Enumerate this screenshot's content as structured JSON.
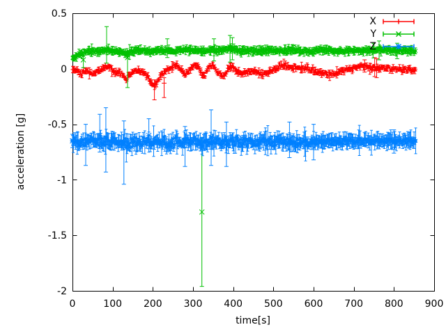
{
  "window": {
    "title": "acceleration plot",
    "background": "#ffffff"
  },
  "chart_data": {
    "type": "scatter",
    "subtype": "errorbars",
    "title": "",
    "xlabel": "time[s]",
    "ylabel": "acceleration [g]",
    "xlim": [
      0,
      900
    ],
    "ylim": [
      -2,
      0.5
    ],
    "grid": false,
    "legend_position": "top-right-inside",
    "axis_color": "#000000",
    "text_color": "#000000",
    "x_ticks": [
      0,
      100,
      200,
      300,
      400,
      500,
      600,
      700,
      800,
      900
    ],
    "x_tick_labels": [
      "0",
      "100",
      "200",
      "300",
      "400",
      "500",
      "600",
      "700",
      "800",
      "900"
    ],
    "y_ticks": [
      0.5,
      0,
      -0.5,
      -1,
      -1.5,
      -2
    ],
    "y_tick_labels": [
      "0.5",
      "0",
      "-0.5",
      "-1",
      "-1.5",
      "-2"
    ],
    "t_start": 0,
    "t_end": 855,
    "sample_step": 2,
    "series": [
      {
        "name": "X",
        "color": "#ff0000",
        "marker": "plus",
        "seed": 101,
        "band": 0.025,
        "ebar": 0.02,
        "anchors": [
          [
            0,
            0.0
          ],
          [
            12,
            -0.02
          ],
          [
            22,
            -0.04
          ],
          [
            32,
            -0.02
          ],
          [
            45,
            -0.05
          ],
          [
            58,
            -0.03
          ],
          [
            70,
            -0.01
          ],
          [
            82,
            0.02
          ],
          [
            92,
            0.01
          ],
          [
            103,
            -0.02
          ],
          [
            115,
            -0.03
          ],
          [
            125,
            -0.06
          ],
          [
            133,
            -0.1
          ],
          [
            140,
            -0.06
          ],
          [
            150,
            -0.03
          ],
          [
            163,
            -0.02
          ],
          [
            175,
            -0.03
          ],
          [
            188,
            -0.07
          ],
          [
            197,
            -0.13
          ],
          [
            205,
            -0.15
          ],
          [
            213,
            -0.1
          ],
          [
            222,
            -0.05
          ],
          [
            235,
            -0.02
          ],
          [
            248,
            0.02
          ],
          [
            258,
            0.04
          ],
          [
            268,
            0.0
          ],
          [
            280,
            -0.06
          ],
          [
            290,
            -0.02
          ],
          [
            300,
            0.02
          ],
          [
            312,
            0.04
          ],
          [
            322,
            -0.05
          ],
          [
            330,
            -0.07
          ],
          [
            338,
            0.0
          ],
          [
            348,
            0.03
          ],
          [
            358,
            -0.02
          ],
          [
            368,
            -0.05
          ],
          [
            378,
            -0.06
          ],
          [
            388,
            0.01
          ],
          [
            398,
            0.03
          ],
          [
            408,
            -0.02
          ],
          [
            418,
            -0.05
          ],
          [
            428,
            -0.04
          ],
          [
            440,
            -0.02
          ],
          [
            455,
            -0.03
          ],
          [
            470,
            -0.05
          ],
          [
            482,
            -0.04
          ],
          [
            495,
            -0.02
          ],
          [
            508,
            0.01
          ],
          [
            520,
            0.03
          ],
          [
            532,
            0.03
          ],
          [
            545,
            0.02
          ],
          [
            558,
            0.01
          ],
          [
            572,
            0.0
          ],
          [
            585,
            0.0
          ],
          [
            598,
            -0.01
          ],
          [
            612,
            -0.03
          ],
          [
            625,
            -0.05
          ],
          [
            640,
            -0.05
          ],
          [
            652,
            -0.04
          ],
          [
            665,
            -0.03
          ],
          [
            678,
            -0.01
          ],
          [
            692,
            0.0
          ],
          [
            705,
            0.01
          ],
          [
            718,
            0.02
          ],
          [
            730,
            0.02
          ],
          [
            742,
            0.01
          ],
          [
            755,
            0.0
          ],
          [
            768,
            0.01
          ],
          [
            780,
            0.01
          ],
          [
            795,
            0.0
          ],
          [
            810,
            0.0
          ],
          [
            825,
            -0.01
          ],
          [
            840,
            -0.01
          ],
          [
            855,
            -0.01
          ]
        ],
        "features": [
          [
            204,
            -0.15,
            -0.28,
            -0.1
          ],
          [
            228,
            -0.13,
            -0.26,
            -0.08
          ],
          [
            727,
            0.03,
            -0.03,
            0.08
          ],
          [
            752,
            0.02,
            -0.07,
            0.1
          ],
          [
            757,
            -0.01,
            -0.08,
            0.09
          ]
        ]
      },
      {
        "name": "Y",
        "color": "#00c000",
        "marker": "cross",
        "seed": 202,
        "band": 0.018,
        "ebar": 0.028,
        "anchors": [
          [
            0,
            0.1
          ],
          [
            8,
            0.11
          ],
          [
            18,
            0.13
          ],
          [
            30,
            0.15
          ],
          [
            45,
            0.16
          ],
          [
            60,
            0.16
          ],
          [
            75,
            0.17
          ],
          [
            90,
            0.17
          ],
          [
            105,
            0.16
          ],
          [
            120,
            0.15
          ],
          [
            135,
            0.14
          ],
          [
            150,
            0.16
          ],
          [
            165,
            0.17
          ],
          [
            180,
            0.16
          ],
          [
            195,
            0.15
          ],
          [
            210,
            0.16
          ],
          [
            225,
            0.17
          ],
          [
            240,
            0.16
          ],
          [
            255,
            0.16
          ],
          [
            270,
            0.17
          ],
          [
            285,
            0.17
          ],
          [
            300,
            0.17
          ],
          [
            315,
            0.16
          ],
          [
            330,
            0.16
          ],
          [
            345,
            0.17
          ],
          [
            360,
            0.16
          ],
          [
            375,
            0.17
          ],
          [
            390,
            0.18
          ],
          [
            405,
            0.17
          ],
          [
            420,
            0.16
          ],
          [
            435,
            0.16
          ],
          [
            450,
            0.16
          ],
          [
            465,
            0.16
          ],
          [
            480,
            0.17
          ],
          [
            495,
            0.17
          ],
          [
            510,
            0.16
          ],
          [
            525,
            0.16
          ],
          [
            540,
            0.17
          ],
          [
            555,
            0.17
          ],
          [
            570,
            0.16
          ],
          [
            585,
            0.16
          ],
          [
            600,
            0.16
          ],
          [
            615,
            0.17
          ],
          [
            630,
            0.17
          ],
          [
            645,
            0.16
          ],
          [
            660,
            0.16
          ],
          [
            675,
            0.16
          ],
          [
            690,
            0.17
          ],
          [
            705,
            0.16
          ],
          [
            720,
            0.16
          ],
          [
            735,
            0.17
          ],
          [
            750,
            0.16
          ],
          [
            765,
            0.17
          ],
          [
            780,
            0.17
          ],
          [
            795,
            0.16
          ],
          [
            810,
            0.17
          ],
          [
            825,
            0.16
          ],
          [
            840,
            0.16
          ],
          [
            855,
            0.16
          ]
        ],
        "features": [
          [
            27,
            0.08,
            0.01,
            0.14
          ],
          [
            85,
            0.18,
            0.05,
            0.38
          ],
          [
            137,
            0.1,
            -0.17,
            0.16
          ],
          [
            236,
            0.17,
            0.1,
            0.27
          ],
          [
            322,
            -1.29,
            -1.96,
            -0.62
          ],
          [
            352,
            0.17,
            0.07,
            0.27
          ],
          [
            392,
            0.18,
            0.06,
            0.3
          ],
          [
            398,
            0.17,
            0.08,
            0.28
          ],
          [
            763,
            0.17,
            0.08,
            0.25
          ],
          [
            808,
            0.16,
            0.09,
            0.23
          ]
        ]
      },
      {
        "name": "Z",
        "color": "#0080ff",
        "marker": "star",
        "seed": 303,
        "band_anchors": [
          [
            0,
            0.05
          ],
          [
            100,
            0.055
          ],
          [
            300,
            0.05
          ],
          [
            500,
            0.05
          ],
          [
            650,
            0.04
          ],
          [
            750,
            0.032
          ],
          [
            855,
            0.028
          ]
        ],
        "ebar": 0.055,
        "anchors": [
          [
            0,
            -0.65
          ],
          [
            30,
            -0.66
          ],
          [
            60,
            -0.655
          ],
          [
            90,
            -0.66
          ],
          [
            120,
            -0.665
          ],
          [
            150,
            -0.66
          ],
          [
            180,
            -0.655
          ],
          [
            210,
            -0.66
          ],
          [
            240,
            -0.665
          ],
          [
            270,
            -0.66
          ],
          [
            300,
            -0.655
          ],
          [
            330,
            -0.66
          ],
          [
            360,
            -0.66
          ],
          [
            390,
            -0.655
          ],
          [
            420,
            -0.66
          ],
          [
            450,
            -0.66
          ],
          [
            480,
            -0.655
          ],
          [
            510,
            -0.66
          ],
          [
            540,
            -0.655
          ],
          [
            570,
            -0.66
          ],
          [
            600,
            -0.66
          ],
          [
            630,
            -0.655
          ],
          [
            660,
            -0.65
          ],
          [
            690,
            -0.65
          ],
          [
            720,
            -0.65
          ],
          [
            750,
            -0.65
          ],
          [
            780,
            -0.648
          ],
          [
            810,
            -0.65
          ],
          [
            840,
            -0.648
          ],
          [
            855,
            -0.65
          ]
        ],
        "features": [
          [
            0,
            -0.65,
            -0.71,
            -0.59
          ],
          [
            33,
            -0.66,
            -0.87,
            -0.5
          ],
          [
            68,
            -0.6,
            -0.75,
            -0.41
          ],
          [
            83,
            -0.62,
            -0.93,
            -0.35
          ],
          [
            128,
            -0.68,
            -1.04,
            -0.47
          ],
          [
            190,
            -0.6,
            -0.72,
            -0.45
          ],
          [
            280,
            -0.66,
            -0.88,
            -0.52
          ],
          [
            345,
            -0.62,
            -0.87,
            -0.37
          ],
          [
            383,
            -0.65,
            -0.88,
            -0.48
          ],
          [
            540,
            -0.64,
            -0.8,
            -0.48
          ],
          [
            600,
            -0.66,
            -0.82,
            -0.5
          ],
          [
            800,
            -0.66,
            -0.76,
            -0.55
          ]
        ]
      }
    ]
  }
}
